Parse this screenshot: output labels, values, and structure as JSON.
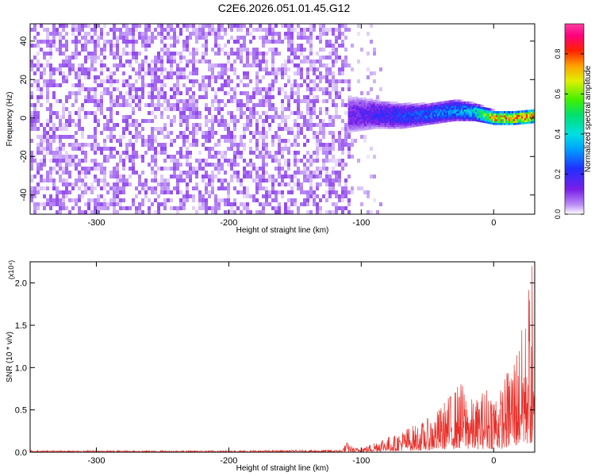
{
  "title": "C2E6.2026.051.01.45.G12",
  "colors": {
    "spectrogram_low": "#7a1fe8",
    "snr_line": "#e8302a",
    "frame": "#000000"
  },
  "chart_data": [
    {
      "type": "heatmap",
      "panel": "top",
      "xlabel": "Height of straight line (km)",
      "ylabel": "Frequency (Hz)",
      "xlim": [
        -350,
        31
      ],
      "ylim": [
        -50,
        49
      ],
      "x_ticks": [
        -300,
        -200,
        -100,
        0
      ],
      "x_tick_labels": [
        "-300",
        "-200",
        "-100",
        "0"
      ],
      "y_ticks": [
        -40,
        -20,
        0,
        20,
        40
      ],
      "y_tick_labels": [
        "-40",
        "-20",
        "0",
        "20",
        "40"
      ],
      "colorbar": {
        "label": "Normalized spectral amplitude",
        "range": [
          0.0,
          0.95
        ],
        "ticks": [
          0.0,
          0.2,
          0.4,
          0.6,
          0.8
        ],
        "tick_labels": [
          "0.0",
          "0.2",
          "0.4",
          "0.6",
          "0.8"
        ],
        "colormap": "rainbow (violet-blue-cyan-green-yellow-red-magenta)"
      },
      "noise_region": {
        "x_range": [
          -350,
          -110
        ],
        "amplitude": 0.05
      },
      "signal_band": [
        {
          "x": -110,
          "center_hz": 2,
          "width_hz": 10,
          "amplitude": 0.15
        },
        {
          "x": -90,
          "center_hz": 2,
          "width_hz": 8,
          "amplitude": 0.2
        },
        {
          "x": -70,
          "center_hz": 1,
          "width_hz": 7,
          "amplitude": 0.25
        },
        {
          "x": -50,
          "center_hz": 2,
          "width_hz": 6,
          "amplitude": 0.3
        },
        {
          "x": -30,
          "center_hz": 4,
          "width_hz": 6,
          "amplitude": 0.35
        },
        {
          "x": -15,
          "center_hz": 3,
          "width_hz": 5,
          "amplitude": 0.45
        },
        {
          "x": 0,
          "center_hz": 0,
          "width_hz": 4,
          "amplitude": 0.8
        },
        {
          "x": 15,
          "center_hz": 0,
          "width_hz": 4,
          "amplitude": 0.85
        },
        {
          "x": 31,
          "center_hz": 1,
          "width_hz": 4,
          "amplitude": 0.9
        }
      ]
    },
    {
      "type": "line",
      "panel": "bottom",
      "xlabel": "Height of straight line (km)",
      "ylabel": "SNR (10 * v/v)",
      "y_multiplier": "(x10⁴)",
      "xlim": [
        -350,
        31
      ],
      "ylim": [
        0,
        2.25
      ],
      "x_ticks": [
        -300,
        -200,
        -100,
        0
      ],
      "x_tick_labels": [
        "-300",
        "-200",
        "-100",
        "0"
      ],
      "y_ticks": [
        0.0,
        0.5,
        1.0,
        1.5,
        2.0
      ],
      "y_tick_labels": [
        "0.0",
        "0.5",
        "1.0",
        "1.5",
        "2.0"
      ],
      "series": [
        {
          "envelope": {
            "x": [
              -350,
              -200,
              -115,
              -111,
              -105,
              -95,
              -85,
              -75,
              -65,
              -55,
              -45,
              -35,
              -25,
              -15,
              -5,
              5,
              15,
              22,
              25,
              27,
              29,
              31
            ],
            "y_max": [
              0.02,
              0.02,
              0.03,
              0.12,
              0.05,
              0.08,
              0.18,
              0.2,
              0.3,
              0.35,
              0.45,
              0.65,
              0.85,
              0.6,
              0.8,
              0.75,
              1.2,
              1.5,
              1.65,
              2.2,
              1.0,
              0.8
            ]
          }
        }
      ]
    }
  ]
}
